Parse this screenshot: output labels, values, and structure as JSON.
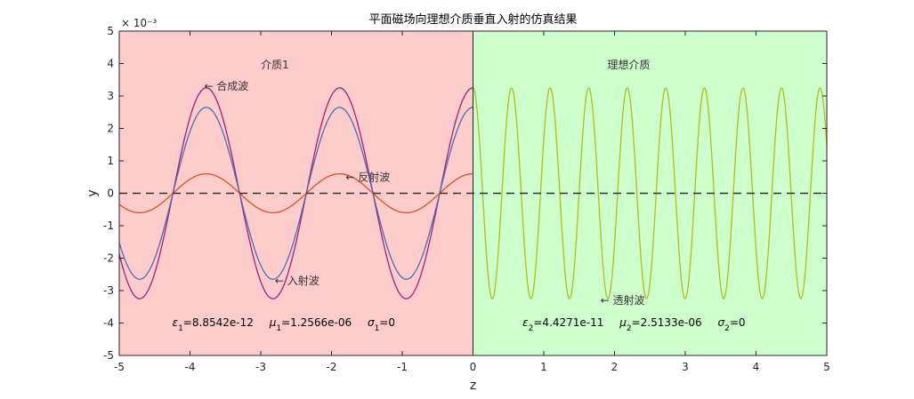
{
  "chart_data": {
    "type": "line",
    "title": "平面磁场向理想介质垂直入射的仿真结果",
    "xlabel": "z",
    "ylabel": "y",
    "xlim": [
      -5,
      5
    ],
    "ylim": [
      -0.005,
      0.005
    ],
    "y_exponent_label": "× 10⁻³",
    "xticks": [
      -5,
      -4,
      -3,
      -2,
      -1,
      0,
      1,
      2,
      3,
      4,
      5
    ],
    "yticks": [
      -5,
      -4,
      -3,
      -2,
      -1,
      0,
      1,
      2,
      3,
      4,
      5
    ],
    "regions": [
      {
        "label": "介质1",
        "x": [
          -5,
          0
        ],
        "color": "#ffcccc"
      },
      {
        "label": "理想介质",
        "x": [
          0,
          5
        ],
        "color": "#ccffcc"
      }
    ],
    "series": [
      {
        "name": "合成波",
        "color": "#a0207f",
        "amplitude": 0.00325,
        "wavelength": 1.885,
        "phase_ref_x": -3.77
      },
      {
        "name": "入射波",
        "color": "#4a6fb0",
        "amplitude": 0.00265,
        "wavelength": 1.885,
        "phase_ref_x": -3.77
      },
      {
        "name": "反射波",
        "color": "#e05020",
        "amplitude": 0.0006,
        "wavelength": 1.885,
        "phase_ref_x": -3.77
      },
      {
        "name": "透射波",
        "color": "#b0bf1a",
        "amplitude": 0.00325,
        "wavelength": 0.545,
        "phase_ref_x": 0.0
      }
    ],
    "annotations": [
      {
        "text": "← 合成波",
        "x": -3.8,
        "y": 0.0033
      },
      {
        "text": "← 反射波",
        "x": -1.8,
        "y": 0.0005
      },
      {
        "text": "← 入射波",
        "x": -2.8,
        "y": -0.0027
      },
      {
        "text": "← 透射波",
        "x": 1.8,
        "y": -0.0033
      }
    ],
    "params": {
      "left": {
        "eps_sym": "ε",
        "eps_sub": "1",
        "eps_val": "=8.8542e-12",
        "mu_sym": "μ",
        "mu_sub": "1",
        "mu_val": "=1.2566e-06",
        "sigma_sym": "σ",
        "sigma_sub": "1",
        "sigma_val": "=0"
      },
      "right": {
        "eps_sym": "ε",
        "eps_sub": "2",
        "eps_val": "=4.4271e-11",
        "mu_sym": "μ",
        "mu_sub": "2",
        "mu_val": "=2.5133e-06",
        "sigma_sym": "σ",
        "sigma_sub": "2",
        "sigma_val": "=0"
      }
    }
  }
}
